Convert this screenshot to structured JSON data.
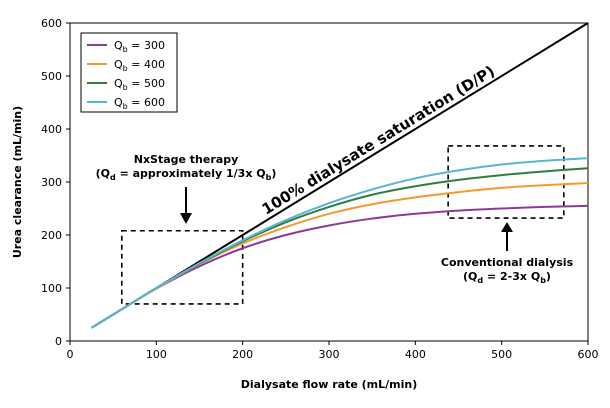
{
  "chart_data": {
    "type": "line",
    "xlabel": "Dialysate flow rate (mL/min)",
    "ylabel": "Urea clearance (mL/min)",
    "xlim": [
      0,
      600
    ],
    "ylim": [
      0,
      600
    ],
    "xticks": [
      0,
      100,
      200,
      300,
      400,
      500,
      600
    ],
    "yticks": [
      0,
      100,
      200,
      300,
      400,
      500,
      600
    ],
    "grid": false,
    "legend_position": "top-left",
    "x": [
      25,
      50,
      75,
      100,
      150,
      200,
      250,
      300,
      350,
      400,
      450,
      500,
      550,
      600
    ],
    "series": [
      {
        "name": "Qb = 300",
        "name_main": "Q",
        "name_sub": "b",
        "name_rest": " = 300",
        "color": "#8b3a96",
        "values": [
          25,
          50,
          75,
          99,
          141,
          175,
          200,
          218,
          231,
          240,
          246,
          250,
          253,
          255
        ]
      },
      {
        "name": "Qb = 400",
        "name_main": "Q",
        "name_sub": "b",
        "name_rest": " = 400",
        "color": "#f39a2e",
        "values": [
          25,
          50,
          75,
          99,
          145,
          184,
          215,
          240,
          258,
          271,
          281,
          289,
          294,
          298
        ]
      },
      {
        "name": "Qb = 500",
        "name_main": "Q",
        "name_sub": "b",
        "name_rest": " = 500",
        "color": "#2e7d3e",
        "values": [
          25,
          50,
          75,
          100,
          146,
          188,
          224,
          253,
          276,
          292,
          304,
          313,
          320,
          326
        ]
      },
      {
        "name": "Qb = 600",
        "name_main": "Q",
        "name_sub": "b",
        "name_rest": " = 600",
        "color": "#5ab4d6",
        "values": [
          25,
          50,
          75,
          100,
          147,
          190,
          228,
          260,
          286,
          307,
          322,
          333,
          340,
          345
        ]
      }
    ],
    "saturation_line": {
      "label": "100% dialysate saturation (D/P)",
      "x": [
        25,
        600
      ],
      "values": [
        25,
        600
      ],
      "color": "#000000"
    },
    "annotations": [
      {
        "id": "nxstage",
        "line1": "NxStage therapy",
        "line2_parts": [
          "(Q",
          "d",
          " = approximately 1/3x Q",
          "b",
          ")"
        ],
        "box_x": [
          60,
          200
        ],
        "box_y": [
          70,
          208
        ]
      },
      {
        "id": "conventional",
        "line1": "Conventional dialysis",
        "line2_parts": [
          "(Q",
          "d",
          " = 2-3x Q",
          "b",
          ")"
        ],
        "box_x": [
          438,
          572
        ],
        "box_y": [
          232,
          368
        ]
      }
    ]
  }
}
